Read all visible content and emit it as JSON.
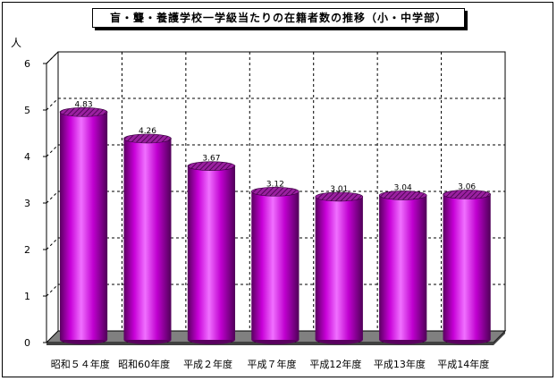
{
  "chart_data": {
    "type": "bar",
    "title": "盲・聾・養護学校一学級当たりの在籍者数の推移（小・中学部）",
    "ylabel": "人",
    "xlabel": "",
    "categories": [
      "昭和５４年度",
      "昭和60年度",
      "平成２年度",
      "平成７年度",
      "平成12年度",
      "平成13年度",
      "平成14年度"
    ],
    "values": [
      4.83,
      4.26,
      3.67,
      3.12,
      3.01,
      3.04,
      3.06
    ],
    "value_labels": [
      "4.83",
      "4.26",
      "3.67",
      "3.12",
      "3.01",
      "3.04",
      "3.06"
    ],
    "yticks": [
      "0",
      "1",
      "2",
      "3",
      "4",
      "5",
      "6"
    ],
    "ylim": [
      0,
      6
    ],
    "grid": true,
    "colors": {
      "bar_light": "#f070ff",
      "bar_mid": "#c800d8",
      "bar_dark": "#5a0060",
      "bar_top": "#8a1890",
      "floor": "#808080",
      "grid": "#000000"
    }
  }
}
